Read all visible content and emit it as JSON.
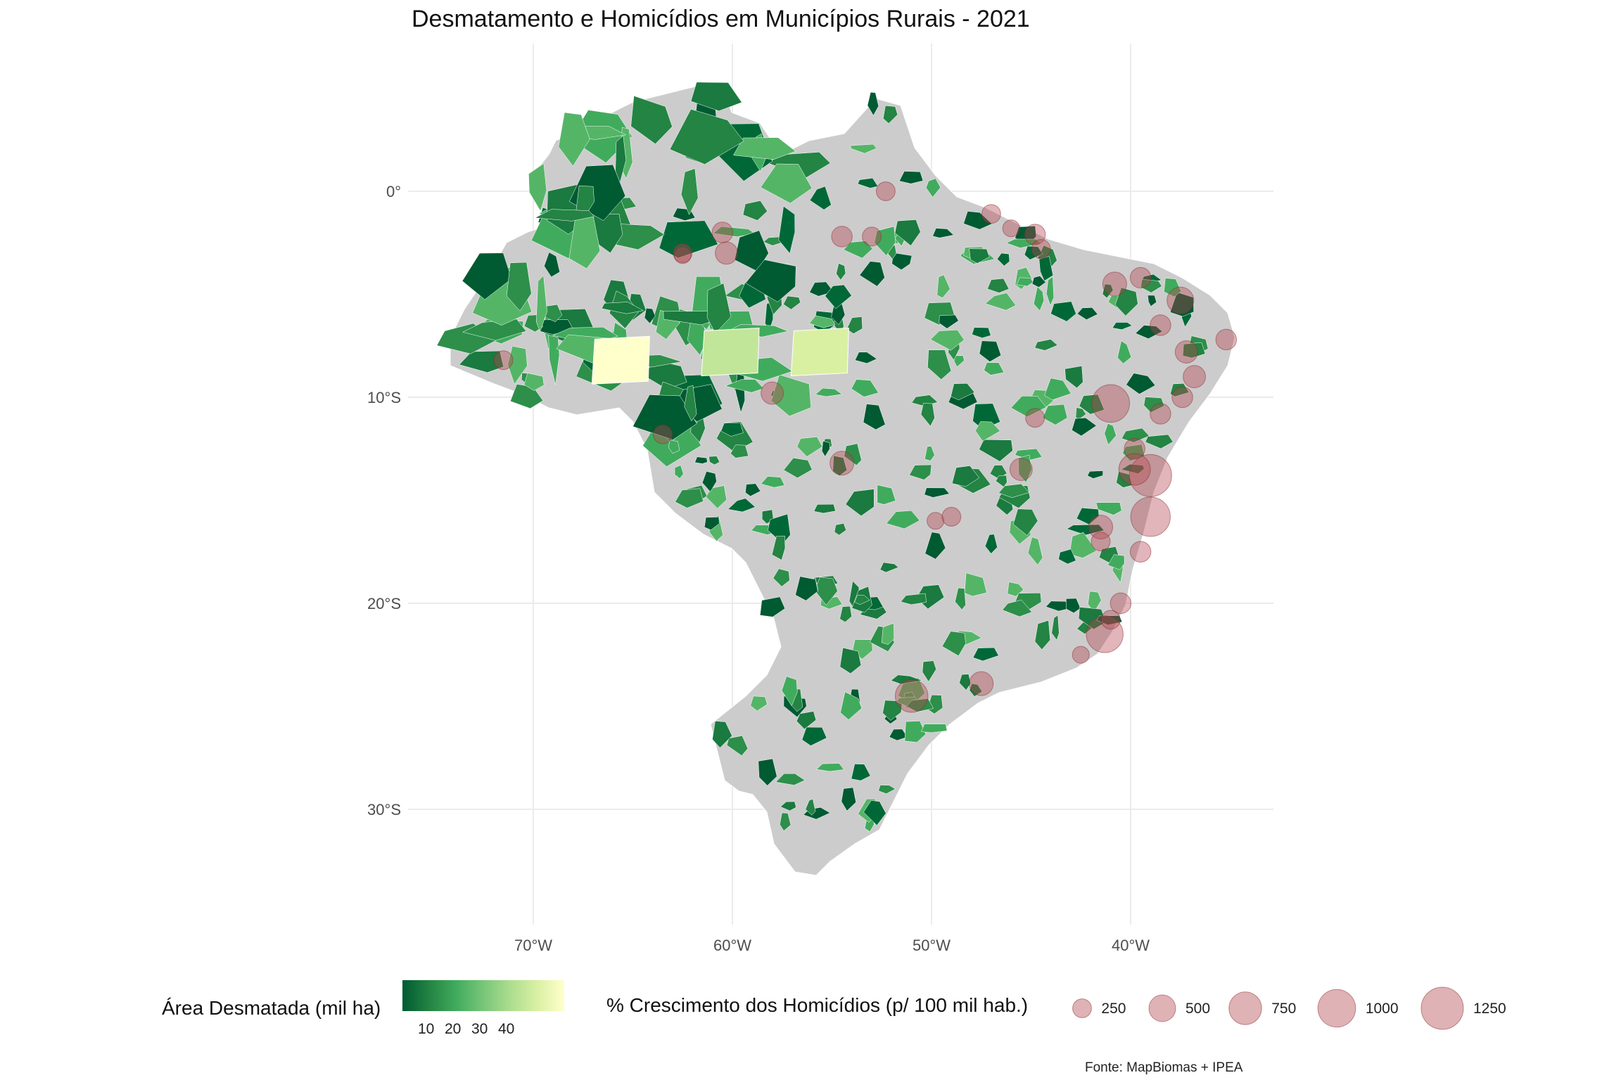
{
  "title": "Desmatamento e Homicídios em Municípios Rurais - 2021",
  "axes": {
    "x_ticks": [
      "70°W",
      "60°W",
      "50°W",
      "40°W"
    ],
    "y_ticks": [
      "0°",
      "10°S",
      "20°S",
      "30°S"
    ]
  },
  "legend_fill": {
    "title": "Área Desmatada (mil ha)",
    "ticks": [
      "10",
      "20",
      "30",
      "40"
    ],
    "colors": [
      "#005a32",
      "#238443",
      "#41ab5d",
      "#78c679",
      "#addd8e",
      "#d9f0a3",
      "#ffffcc"
    ]
  },
  "legend_size": {
    "title": "% Crescimento dos Homicídios (p/ 100 mil hab.)",
    "entries": [
      "250",
      "500",
      "750",
      "1000",
      "1250"
    ],
    "color": "#c97f84"
  },
  "source": "Fonte: MapBiomas + IPEA",
  "chart_data": {
    "type": "map",
    "x_tick_values_deg": [
      -70,
      -60,
      -50,
      -40
    ],
    "y_tick_values_deg": [
      0,
      -10,
      -20,
      -30
    ],
    "size_legend_values": [
      250,
      500,
      750,
      1000,
      1250
    ],
    "fill_legend_values": [
      10,
      20,
      30,
      40
    ],
    "grid": true,
    "land_color": "#cccccc",
    "bubble_color": "#b5474f",
    "bubbles": [
      {
        "lon": -62.5,
        "lat": -3.0,
        "value": 250
      },
      {
        "lon": -52.3,
        "lat": 0.0,
        "value": 250
      },
      {
        "lon": -60.5,
        "lat": -2.0,
        "value": 300
      },
      {
        "lon": -60.3,
        "lat": -3.0,
        "value": 350
      },
      {
        "lon": -62.5,
        "lat": -3.1,
        "value": 200
      },
      {
        "lon": -54.5,
        "lat": -2.2,
        "value": 300
      },
      {
        "lon": -53.0,
        "lat": -2.2,
        "value": 250
      },
      {
        "lon": -47.0,
        "lat": -1.1,
        "value": 250
      },
      {
        "lon": -46.0,
        "lat": -1.8,
        "value": 200
      },
      {
        "lon": -44.8,
        "lat": -2.1,
        "value": 300
      },
      {
        "lon": -44.5,
        "lat": -2.8,
        "value": 250
      },
      {
        "lon": -40.8,
        "lat": -4.5,
        "value": 400
      },
      {
        "lon": -39.5,
        "lat": -4.2,
        "value": 300
      },
      {
        "lon": -37.5,
        "lat": -5.3,
        "value": 500
      },
      {
        "lon": -38.5,
        "lat": -6.5,
        "value": 300
      },
      {
        "lon": -35.2,
        "lat": -7.2,
        "value": 300
      },
      {
        "lon": -37.2,
        "lat": -7.8,
        "value": 350
      },
      {
        "lon": -36.8,
        "lat": -9.0,
        "value": 350
      },
      {
        "lon": -37.4,
        "lat": -10.0,
        "value": 300
      },
      {
        "lon": -41.0,
        "lat": -10.3,
        "value": 1000
      },
      {
        "lon": -38.5,
        "lat": -10.8,
        "value": 300
      },
      {
        "lon": -39.8,
        "lat": -12.5,
        "value": 300
      },
      {
        "lon": -39.0,
        "lat": -13.8,
        "value": 1250
      },
      {
        "lon": -39.8,
        "lat": -13.5,
        "value": 700
      },
      {
        "lon": -39.0,
        "lat": -15.8,
        "value": 1100
      },
      {
        "lon": -41.5,
        "lat": -16.3,
        "value": 400
      },
      {
        "lon": -39.5,
        "lat": -17.5,
        "value": 300
      },
      {
        "lon": -40.5,
        "lat": -20.0,
        "value": 300
      },
      {
        "lon": -41.3,
        "lat": -21.5,
        "value": 950
      },
      {
        "lon": -42.5,
        "lat": -22.5,
        "value": 200
      },
      {
        "lon": -47.5,
        "lat": -23.9,
        "value": 400
      },
      {
        "lon": -51.0,
        "lat": -24.5,
        "value": 750
      },
      {
        "lon": -71.5,
        "lat": -8.2,
        "value": 250
      },
      {
        "lon": -63.5,
        "lat": -11.8,
        "value": 250
      },
      {
        "lon": -58.0,
        "lat": -9.8,
        "value": 350
      },
      {
        "lon": -54.5,
        "lat": -13.2,
        "value": 400
      },
      {
        "lon": -45.5,
        "lat": -13.5,
        "value": 350
      },
      {
        "lon": -44.8,
        "lat": -11.0,
        "value": 250
      },
      {
        "lon": -49.8,
        "lat": -16.0,
        "value": 200
      },
      {
        "lon": -49.0,
        "lat": -15.8,
        "value": 250
      },
      {
        "lon": -41.5,
        "lat": -17.0,
        "value": 250
      },
      {
        "lon": -41.0,
        "lat": -20.8,
        "value": 250
      }
    ]
  }
}
